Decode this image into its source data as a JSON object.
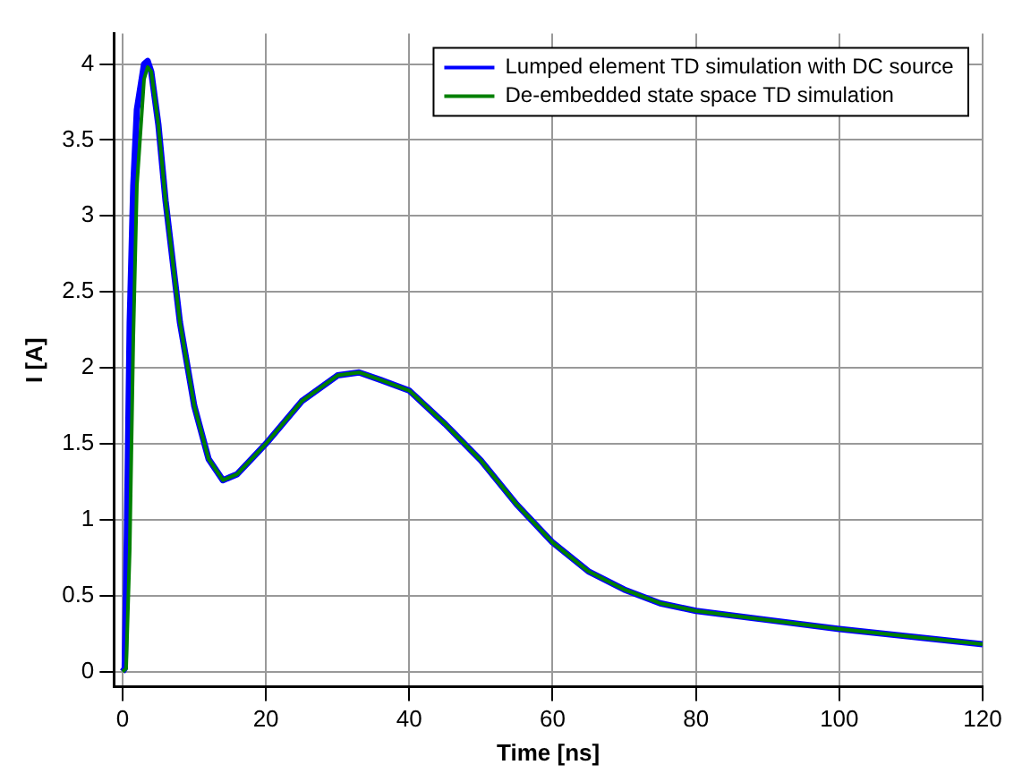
{
  "chart_data": {
    "type": "line",
    "xlabel": "Time [ns]",
    "ylabel": "I [A]",
    "xlim": [
      -1.2,
      120
    ],
    "ylim": [
      -0.1,
      4.2
    ],
    "xticks": [
      0,
      20,
      40,
      60,
      80,
      100,
      120
    ],
    "yticks": [
      0,
      0.5,
      1,
      1.5,
      2,
      2.5,
      3,
      3.5,
      4
    ],
    "grid": true,
    "legend": "top right",
    "marker": "none",
    "line_style": "solid",
    "series": [
      {
        "name": "Lumped element TD simulation with DC source",
        "color": "#0000ff",
        "x": [
          0,
          0.3,
          0.6,
          1,
          1.5,
          2,
          3,
          3.5,
          4,
          5,
          6,
          8,
          10,
          12,
          14,
          16,
          20,
          25,
          30,
          33,
          36,
          40,
          45,
          50,
          55,
          60,
          65,
          70,
          75,
          80,
          90,
          100,
          110,
          120
        ],
        "values": [
          0,
          0.02,
          0.9,
          2.3,
          3.2,
          3.7,
          4.0,
          4.02,
          3.95,
          3.6,
          3.1,
          2.3,
          1.75,
          1.4,
          1.26,
          1.3,
          1.5,
          1.78,
          1.95,
          1.97,
          1.92,
          1.85,
          1.63,
          1.39,
          1.1,
          0.85,
          0.66,
          0.54,
          0.45,
          0.4,
          0.34,
          0.28,
          0.23,
          0.18
        ]
      },
      {
        "name": "De-embedded state space TD simulation",
        "color": "#008000",
        "x": [
          0,
          0.5,
          1,
          1.5,
          2,
          3,
          3.5,
          4,
          5,
          6,
          8,
          10,
          12,
          14,
          16,
          20,
          25,
          30,
          33,
          36,
          40,
          45,
          50,
          55,
          60,
          65,
          70,
          75,
          80,
          90,
          100,
          110,
          120
        ],
        "values": [
          0,
          0.02,
          0.8,
          2.2,
          3.2,
          3.9,
          3.98,
          3.95,
          3.6,
          3.1,
          2.3,
          1.75,
          1.4,
          1.26,
          1.3,
          1.5,
          1.78,
          1.95,
          1.97,
          1.92,
          1.85,
          1.63,
          1.39,
          1.1,
          0.85,
          0.66,
          0.54,
          0.45,
          0.4,
          0.34,
          0.28,
          0.23,
          0.18
        ]
      }
    ]
  }
}
